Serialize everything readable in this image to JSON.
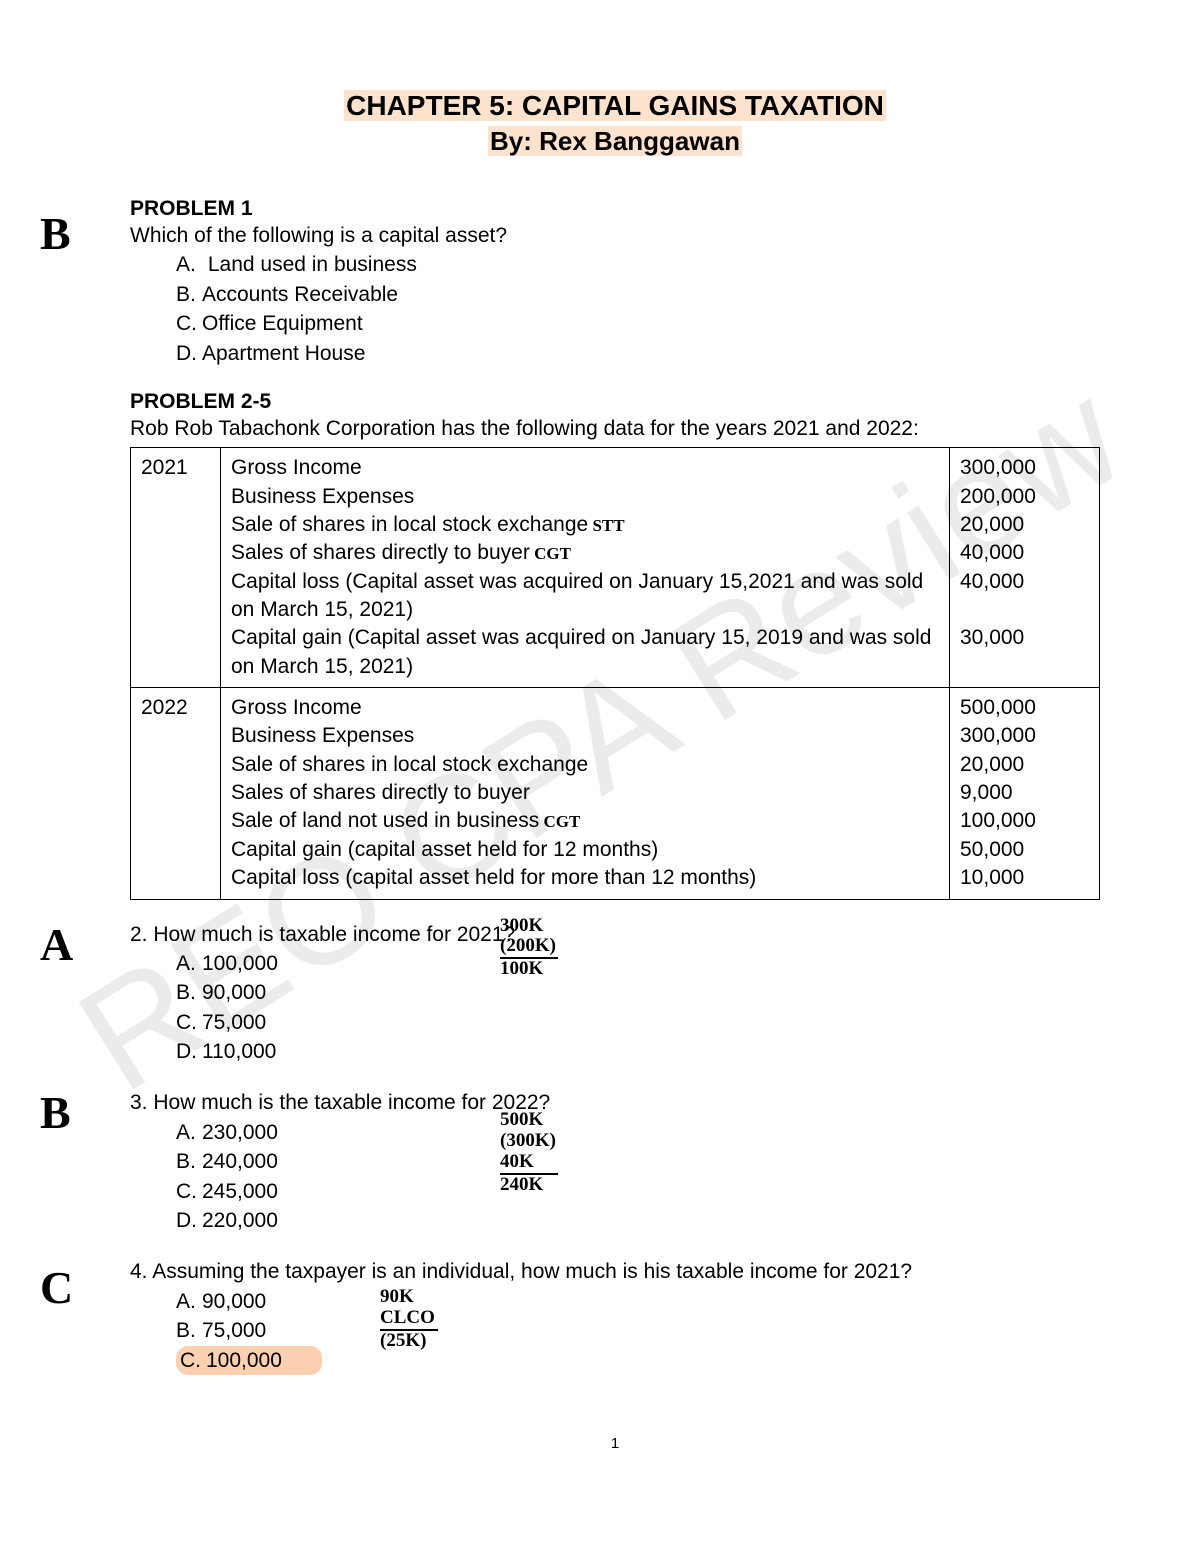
{
  "watermark": "REO CPA Review",
  "title": "CHAPTER 5: CAPITAL GAINS TAXATION",
  "byline": "By: Rex Banggawan",
  "problem1": {
    "heading": "PROBLEM 1",
    "question": "Which of the following  is a capital asset?",
    "options": {
      "a": "Land used in business",
      "b": "Accounts Receivable",
      "c": "Office Equipment",
      "d": "Apartment House"
    },
    "margin_answer": "B"
  },
  "problem25": {
    "heading": "PROBLEM 2-5",
    "intro": "Rob Rob Tabachonk Corporation has the following data for the years 2021 and 2022:"
  },
  "table": {
    "rows": [
      {
        "year": "2021",
        "items": [
          {
            "label": "Gross Income",
            "value": "300,000",
            "note": ""
          },
          {
            "label": "Business Expenses",
            "value": "200,000",
            "note": ""
          },
          {
            "label": "Sale of shares in local stock exchange",
            "value": "20,000",
            "note": "STT"
          },
          {
            "label": "Sales of shares directly to buyer",
            "value": "40,000",
            "note": "CGT"
          },
          {
            "label": "Capital loss (Capital asset was acquired on January 15,2021 and was sold on March 15, 2021)",
            "value": "40,000",
            "note": ""
          },
          {
            "label": "Capital gain (Capital asset was acquired on January 15, 2019 and was sold on March 15, 2021)",
            "value": "30,000",
            "note": ""
          }
        ]
      },
      {
        "year": "2022",
        "items": [
          {
            "label": "Gross Income",
            "value": "500,000",
            "note": ""
          },
          {
            "label": "Business Expenses",
            "value": "300,000",
            "note": ""
          },
          {
            "label": "Sale of shares in local stock exchange",
            "value": "20,000",
            "note": ""
          },
          {
            "label": "Sales of shares directly to buyer",
            "value": "9,000",
            "note": ""
          },
          {
            "label": "Sale of land not used in business",
            "value": "100,000",
            "note": "CGT"
          },
          {
            "label": "Capital gain (capital asset held for 12 months)",
            "value": "50,000",
            "note": ""
          },
          {
            "label": "Capital loss (capital asset held for more than 12 months)",
            "value": "10,000",
            "note": ""
          }
        ]
      }
    ]
  },
  "q2": {
    "question": "2. How much is taxable income for 2021?",
    "options": {
      "a": "100,000",
      "b": "90,000",
      "c": "75,000",
      "d": "110,000"
    },
    "margin_answer": "A",
    "notes": [
      "300K",
      "(200K)",
      "100K"
    ]
  },
  "q3": {
    "question": "3. How much is the taxable income for 2022?",
    "options": {
      "a": "230,000",
      "b": "240,000",
      "c": "245,000",
      "d": "220,000"
    },
    "margin_answer": "B",
    "notes": [
      "500K",
      "(300K)",
      "40K",
      "240K"
    ]
  },
  "q4": {
    "question": "4. Assuming the taxpayer is an individual, how much is his taxable income for 2021?",
    "options": {
      "a": "90,000",
      "b": "75,000",
      "c": "100,000"
    },
    "margin_answer": "C",
    "notes": [
      "90K",
      "CLCO",
      "(25K)"
    ]
  },
  "page_number": "1",
  "colors": {
    "highlight": "#fde3ce",
    "highlight_strong": "#fcd0b0",
    "text": "#000000",
    "watermark": "rgba(0,0,0,0.08)"
  }
}
